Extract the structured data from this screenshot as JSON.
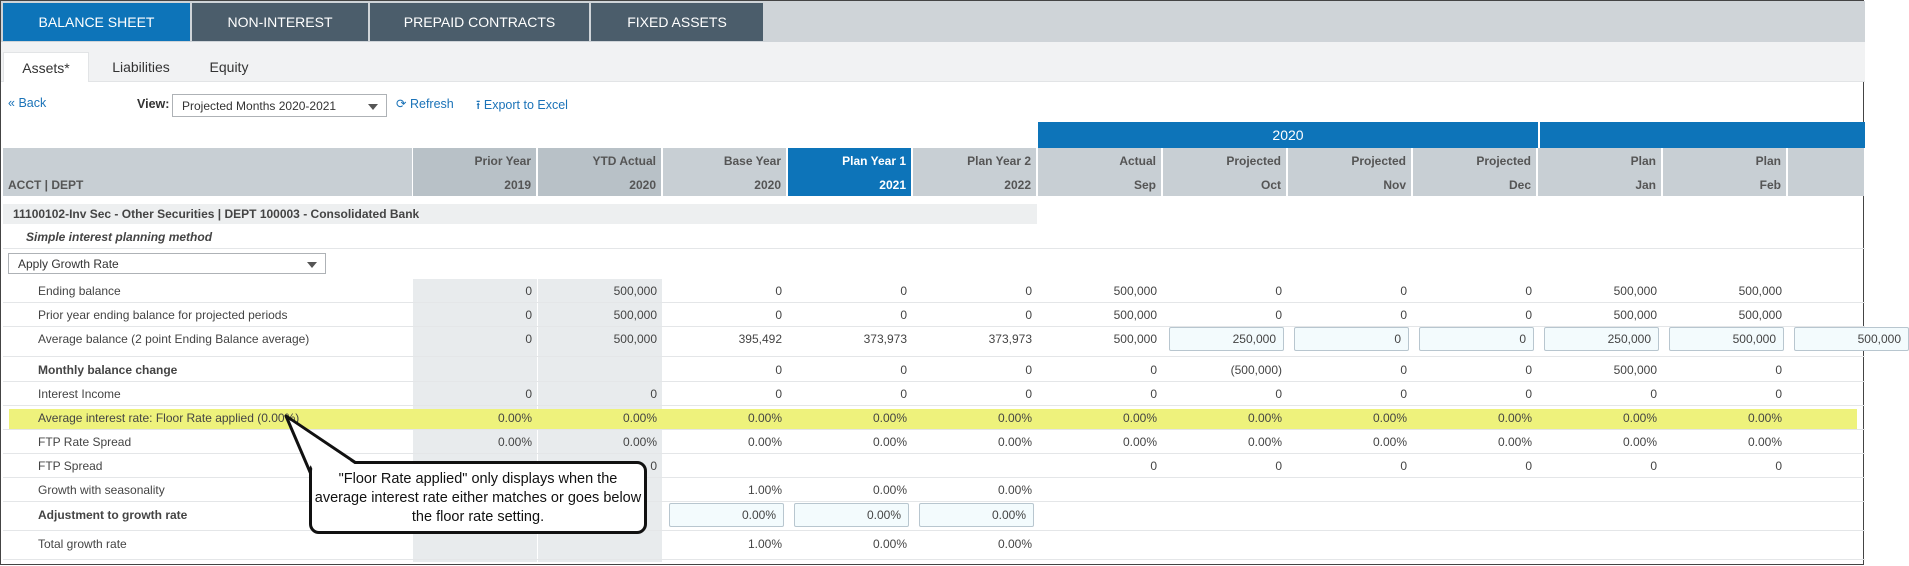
{
  "top_tabs": [
    {
      "label": "BALANCE SHEET",
      "active": true
    },
    {
      "label": "NON-INTEREST",
      "active": false
    },
    {
      "label": "PREPAID CONTRACTS",
      "active": false
    },
    {
      "label": "FIXED ASSETS",
      "active": false
    }
  ],
  "sub_tabs": [
    {
      "label": "Assets*",
      "active": true
    },
    {
      "label": "Liabilities",
      "active": false
    },
    {
      "label": "Equity",
      "active": false
    }
  ],
  "toolbar": {
    "back_label": "Back",
    "view_label": "View:",
    "view_value": "Projected Months 2020-2021",
    "refresh_label": "Refresh",
    "export_label": "Export to Excel"
  },
  "grid": {
    "year_band": "2020",
    "acct_header": "ACCT | DEPT",
    "columns": [
      {
        "l1": "Prior Year",
        "l2": "2019"
      },
      {
        "l1": "YTD Actual",
        "l2": "2020"
      },
      {
        "l1": "Base Year",
        "l2": "2020"
      },
      {
        "l1": "Plan Year 1",
        "l2": "2021"
      },
      {
        "l1": "Plan Year 2",
        "l2": "2022"
      },
      {
        "l1": "Actual",
        "l2": "Sep"
      },
      {
        "l1": "Projected",
        "l2": "Oct"
      },
      {
        "l1": "Projected",
        "l2": "Nov"
      },
      {
        "l1": "Projected",
        "l2": "Dec"
      },
      {
        "l1": "Plan",
        "l2": "Jan"
      },
      {
        "l1": "Plan",
        "l2": "Feb"
      }
    ],
    "section_title": "11100102-Inv Sec - Other Securities | DEPT 100003 - Consolidated Bank",
    "method_label": "Simple interest planning method",
    "method_select": "Apply Growth Rate",
    "rows": [
      {
        "label": "Ending balance",
        "bold": false,
        "values": [
          "0",
          "500,000",
          "0",
          "0",
          "0",
          "500,000",
          "0",
          "0",
          "0",
          "500,000",
          "500,000"
        ]
      },
      {
        "label": "Prior year ending balance for projected periods",
        "bold": false,
        "values": [
          "0",
          "500,000",
          "0",
          "0",
          "0",
          "500,000",
          "0",
          "0",
          "0",
          "500,000",
          "500,000"
        ]
      },
      {
        "label": "Average balance (2 point Ending Balance average)",
        "bold": false,
        "values": [
          "0",
          "500,000",
          "395,492",
          "373,973",
          "373,973",
          "500,000"
        ],
        "inputs": [
          "250,000",
          "0",
          "0",
          "250,000",
          "500,000",
          "500,000"
        ]
      },
      {
        "label": "Monthly balance change",
        "bold": true,
        "values": [
          "",
          "",
          "0",
          "0",
          "0",
          "0",
          "(500,000)",
          "0",
          "0",
          "500,000",
          "0"
        ]
      },
      {
        "label": "Interest Income",
        "bold": false,
        "values": [
          "0",
          "0",
          "0",
          "0",
          "0",
          "0",
          "0",
          "0",
          "0",
          "0",
          "0"
        ]
      },
      {
        "label": "Average interest rate: Floor Rate applied (0.00%)",
        "bold": false,
        "values": [
          "0.00%",
          "0.00%",
          "0.00%",
          "0.00%",
          "0.00%",
          "0.00%",
          "0.00%",
          "0.00%",
          "0.00%",
          "0.00%",
          "0.00%"
        ]
      },
      {
        "label": "FTP Rate Spread",
        "bold": false,
        "values": [
          "0.00%",
          "0.00%",
          "0.00%",
          "0.00%",
          "0.00%",
          "0.00%",
          "0.00%",
          "0.00%",
          "0.00%",
          "0.00%",
          "0.00%"
        ]
      },
      {
        "label": "FTP Spread",
        "bold": false,
        "values": [
          "",
          "0",
          "",
          "",
          "",
          "0",
          "0",
          "0",
          "0",
          "0",
          "0"
        ]
      },
      {
        "label": "Growth with seasonality",
        "bold": false,
        "values": [
          "",
          "",
          "1.00%",
          "0.00%",
          "0.00%",
          "",
          "",
          "",
          "",
          "",
          ""
        ]
      },
      {
        "label": "Adjustment to growth rate",
        "bold": true,
        "values": [],
        "inputs": [
          "0.00%",
          "0.00%",
          "0.00%"
        ]
      },
      {
        "label": "Total growth rate",
        "bold": false,
        "values": [
          "",
          "",
          "1.00%",
          "0.00%",
          "0.00%",
          "",
          "",
          "",
          "",
          "",
          ""
        ]
      }
    ]
  },
  "callout": {
    "text": "\"Floor Rate applied\" only displays when the average interest rate either matches or goes below the floor rate setting."
  },
  "colors": {
    "tab_active": "#0d74b9",
    "tab_inactive": "#4b5d6b",
    "highlight": "#eef27c",
    "link": "#1b73b8"
  }
}
